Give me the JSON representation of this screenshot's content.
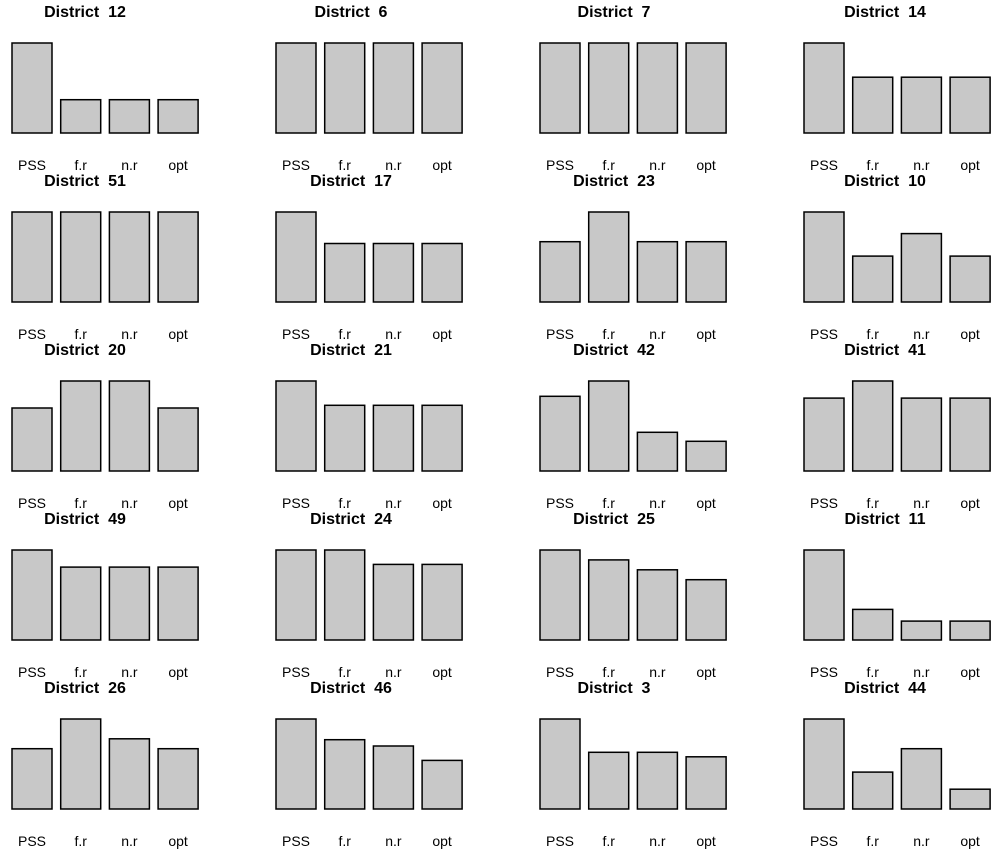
{
  "chart_data": {
    "type": "bar",
    "layout": "small-multiples 5x4",
    "categories": [
      "PSS",
      "f.r",
      "n.r",
      "opt"
    ],
    "bar_color": "#c8c8c8",
    "edge_color": "#000000",
    "axes_shown": false,
    "panels": [
      {
        "title": "District  12",
        "values": [
          1.0,
          0.37,
          0.37,
          0.37
        ]
      },
      {
        "title": "District  6",
        "values": [
          1.0,
          1.0,
          1.0,
          1.0
        ]
      },
      {
        "title": "District  7",
        "values": [
          1.0,
          1.0,
          1.0,
          1.0
        ]
      },
      {
        "title": "District  14",
        "values": [
          1.0,
          0.62,
          0.62,
          0.62
        ]
      },
      {
        "title": "District  51",
        "values": [
          1.0,
          1.0,
          1.0,
          1.0
        ]
      },
      {
        "title": "District  17",
        "values": [
          1.0,
          0.65,
          0.65,
          0.65
        ]
      },
      {
        "title": "District  23",
        "values": [
          0.67,
          1.0,
          0.67,
          0.67
        ]
      },
      {
        "title": "District  10",
        "values": [
          1.0,
          0.51,
          0.76,
          0.51
        ]
      },
      {
        "title": "District  20",
        "values": [
          0.7,
          1.0,
          1.0,
          0.7
        ]
      },
      {
        "title": "District  21",
        "values": [
          1.0,
          0.73,
          0.73,
          0.73
        ]
      },
      {
        "title": "District  42",
        "values": [
          0.83,
          1.0,
          0.43,
          0.33
        ]
      },
      {
        "title": "District  41",
        "values": [
          0.81,
          1.0,
          0.81,
          0.81
        ]
      },
      {
        "title": "District  49",
        "values": [
          1.0,
          0.81,
          0.81,
          0.81
        ]
      },
      {
        "title": "District  24",
        "values": [
          1.0,
          1.0,
          0.84,
          0.84
        ]
      },
      {
        "title": "District  25",
        "values": [
          1.0,
          0.89,
          0.78,
          0.67
        ]
      },
      {
        "title": "District  11",
        "values": [
          1.0,
          0.34,
          0.21,
          0.21
        ]
      },
      {
        "title": "District  26",
        "values": [
          0.67,
          1.0,
          0.78,
          0.67
        ]
      },
      {
        "title": "District  46",
        "values": [
          1.0,
          0.77,
          0.7,
          0.54
        ]
      },
      {
        "title": "District  3",
        "values": [
          1.0,
          0.63,
          0.63,
          0.58
        ]
      },
      {
        "title": "District  44",
        "values": [
          1.0,
          0.41,
          0.67,
          0.22
        ]
      }
    ]
  }
}
